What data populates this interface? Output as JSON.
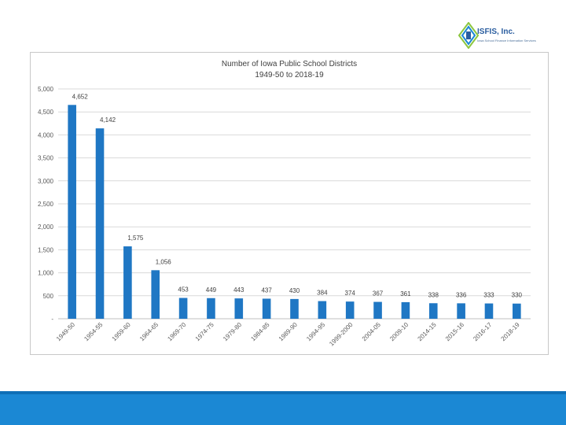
{
  "logo": {
    "name": "ISFIS, Inc.",
    "tagline": "Iowa School Finance Information Services"
  },
  "colors": {
    "bar": "#1f77c4",
    "grid": "#d9d9d9",
    "footer": "#1b88d4"
  },
  "chart_data": {
    "type": "bar",
    "title": "Number of Iowa Public School Districts",
    "subtitle": "1949-50 to 2018-19",
    "categories": [
      "1949-50",
      "1954-55",
      "1959-60",
      "1964-65",
      "1969-70",
      "1974-75",
      "1979-80",
      "1984-85",
      "1989-90",
      "1994-95",
      "1999-2000",
      "2004-05",
      "2009-10",
      "2014-15",
      "2015-16",
      "2016-17",
      "2018-19"
    ],
    "values": [
      4652,
      4142,
      1575,
      1056,
      453,
      449,
      443,
      437,
      430,
      384,
      374,
      367,
      361,
      338,
      336,
      333,
      330
    ],
    "value_labels": [
      "4,652",
      "4,142",
      "1,575",
      "1,056",
      "453",
      "449",
      "443",
      "437",
      "430",
      "384",
      "374",
      "367",
      "361",
      "338",
      "336",
      "333",
      "330"
    ],
    "ylim": [
      0,
      5000
    ],
    "yticks": [
      0,
      500,
      1000,
      1500,
      2000,
      2500,
      3000,
      3500,
      4000,
      4500,
      5000
    ],
    "ytick_labels": [
      "-",
      "500",
      "1,000",
      "1,500",
      "2,000",
      "2,500",
      "3,000",
      "3,500",
      "4,000",
      "4,500",
      "5,000"
    ],
    "grid": true,
    "legend": "none"
  }
}
